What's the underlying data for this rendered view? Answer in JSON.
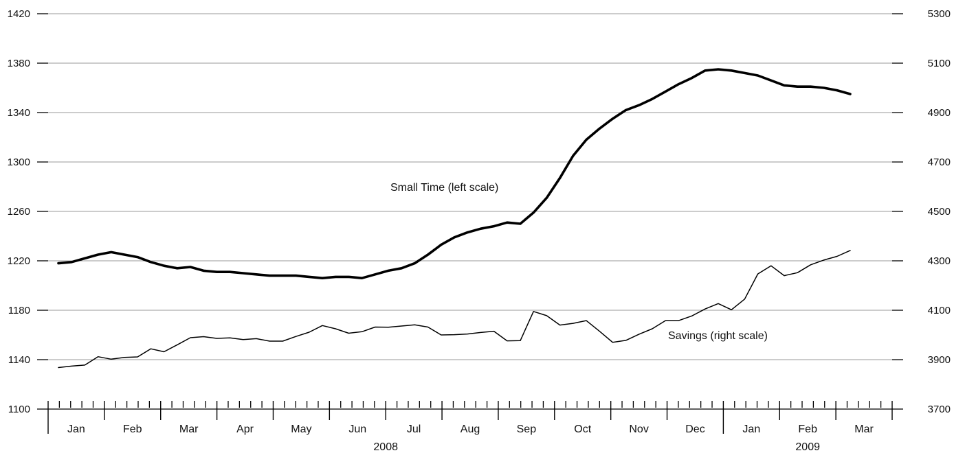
{
  "chart_data": {
    "type": "line",
    "x_unit": "week",
    "left_axis": {
      "ticks": [
        1100,
        1140,
        1180,
        1220,
        1260,
        1300,
        1340,
        1380,
        1420
      ],
      "ylim": [
        1100,
        1420
      ]
    },
    "right_axis": {
      "ticks": [
        3700,
        3900,
        4100,
        4300,
        4500,
        4700,
        4900,
        5100,
        5300
      ],
      "ylim": [
        3700,
        5300
      ]
    },
    "grid": true,
    "months": [
      "Jan",
      "Feb",
      "Mar",
      "Apr",
      "May",
      "Jun",
      "Jul",
      "Aug",
      "Sep",
      "Oct",
      "Nov",
      "Dec",
      "Jan",
      "Feb",
      "Mar"
    ],
    "years": [
      "2008",
      "2009"
    ],
    "series": [
      {
        "name": "Small Time (left scale)",
        "axis": "left",
        "color": "#000000",
        "values": [
          1218,
          1219,
          1222,
          1225,
          1227,
          1225,
          1223,
          1219,
          1216,
          1214,
          1215,
          1212,
          1211,
          1211,
          1210,
          1209,
          1208,
          1208,
          1208,
          1207,
          1206,
          1207,
          1207,
          1206,
          1209,
          1212,
          1214,
          1218,
          1225,
          1233,
          1239,
          1243,
          1246,
          1248,
          1251,
          1250,
          1259,
          1271,
          1287,
          1305,
          1318,
          1327,
          1335,
          1342,
          1346,
          1351,
          1357,
          1363,
          1368,
          1374,
          1375,
          1374,
          1372,
          1370,
          1366,
          1362,
          1361,
          1361,
          1360,
          1358,
          1355
        ]
      },
      {
        "name": "Savings (right scale)",
        "axis": "right",
        "color": "#000000",
        "values": [
          3868,
          3874,
          3878,
          3912,
          3902,
          3909,
          3911,
          3944,
          3932,
          3960,
          3989,
          3993,
          3986,
          3988,
          3981,
          3985,
          3975,
          3975,
          3994,
          4011,
          4038,
          4025,
          4007,
          4013,
          4032,
          4031,
          4036,
          4041,
          4032,
          4000,
          4001,
          4004,
          4010,
          4015,
          3976,
          3977,
          4095,
          4078,
          4040,
          4047,
          4058,
          4015,
          3970,
          3978,
          4003,
          4025,
          4058,
          4058,
          4077,
          4105,
          4127,
          4102,
          4145,
          4247,
          4280,
          4240,
          4252,
          4284,
          4303,
          4318,
          4342
        ]
      }
    ]
  }
}
